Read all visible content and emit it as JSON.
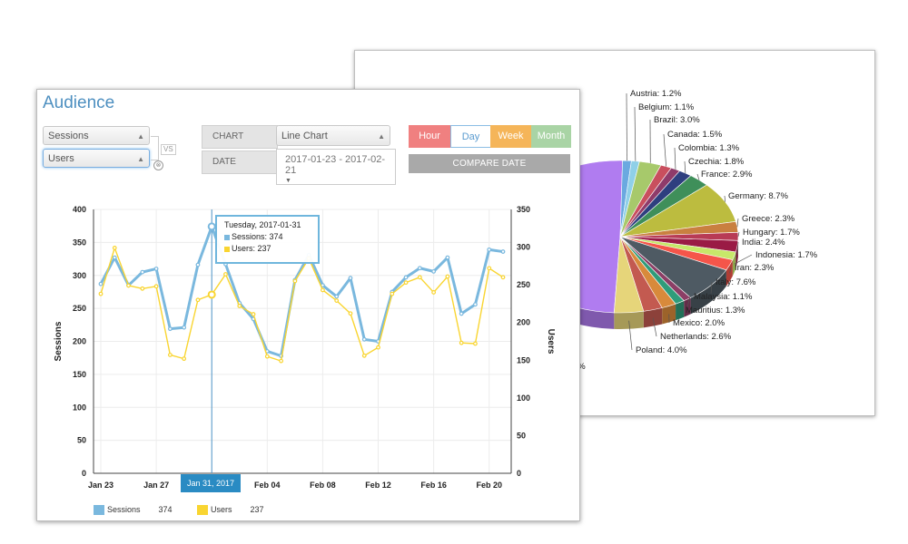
{
  "pie_panel": {
    "labels": [
      {
        "name": "Austria",
        "pct": "Austria: 1.2%"
      },
      {
        "name": "Belgium",
        "pct": "Belgium: 1.1%"
      },
      {
        "name": "Brazil",
        "pct": "Brazil: 3.0%"
      },
      {
        "name": "Canada",
        "pct": "Canada: 1.5%"
      },
      {
        "name": "Colombia",
        "pct": "Colombia: 1.3%"
      },
      {
        "name": "Czechia",
        "pct": "Czechia: 1.8%"
      },
      {
        "name": "France",
        "pct": "France: 2.9%"
      },
      {
        "name": "Germany",
        "pct": "Germany: 8.7%"
      },
      {
        "name": "Greece",
        "pct": "Greece: 2.3%"
      },
      {
        "name": "Hungary",
        "pct": "Hungary: 1.7%"
      },
      {
        "name": "India",
        "pct": "India: 2.4%"
      },
      {
        "name": "Indonesia",
        "pct": "Indonesia: 1.7%"
      },
      {
        "name": "Iran",
        "pct": "Iran: 2.3%"
      },
      {
        "name": "Italy",
        "pct": "Italy: 7.6%"
      },
      {
        "name": "Malaysia",
        "pct": "Malaysia: 1.1%"
      },
      {
        "name": "Mauritius",
        "pct": "Mauritius: 1.3%"
      },
      {
        "name": "Mexico",
        "pct": "Mexico: 2.0%"
      },
      {
        "name": "Netherlands",
        "pct": "Netherlands: 2.6%"
      },
      {
        "name": "Poland",
        "pct": "Poland: 4.0%"
      }
    ],
    "partial_label": "5%"
  },
  "audience": {
    "title": "Audience",
    "metric1": "Sessions",
    "metric2": "Users",
    "vs_label": "VS",
    "clear_glyph": "⊗",
    "chart_label": "CHART",
    "chart_type": "Line Chart",
    "date_label": "DATE",
    "date_range": "2017-01-23 - 2017-02-21",
    "granularity": [
      {
        "label": "Hour",
        "color": "#f08080",
        "active": false
      },
      {
        "label": "Day",
        "color": "#ffffff",
        "active": true
      },
      {
        "label": "Week",
        "color": "#f5b559",
        "active": false
      },
      {
        "label": "Month",
        "color": "#a9d4a5",
        "active": false
      }
    ],
    "compare_label": "COMPARE DATE",
    "tooltip": {
      "date": "Tuesday, 2017-01-31",
      "sessions": "Sessions: 374",
      "users": "Users: 237"
    },
    "date_flag": "Jan 31, 2017",
    "legend": [
      {
        "name": "Sessions",
        "value": "374",
        "color": "#7ab8de"
      },
      {
        "name": "Users",
        "value": "237",
        "color": "#f9d531"
      }
    ]
  },
  "chart_data": [
    {
      "type": "line",
      "x": [
        "2017-01-23",
        "2017-01-24",
        "2017-01-25",
        "2017-01-26",
        "2017-01-27",
        "2017-01-28",
        "2017-01-29",
        "2017-01-30",
        "2017-01-31",
        "2017-02-01",
        "2017-02-02",
        "2017-02-03",
        "2017-02-04",
        "2017-02-05",
        "2017-02-06",
        "2017-02-07",
        "2017-02-08",
        "2017-02-09",
        "2017-02-10",
        "2017-02-11",
        "2017-02-12",
        "2017-02-13",
        "2017-02-14",
        "2017-02-15",
        "2017-02-16",
        "2017-02-17",
        "2017-02-18",
        "2017-02-19",
        "2017-02-20",
        "2017-02-21"
      ],
      "x_tick_labels": [
        "Jan 23",
        "Jan 27",
        "Feb 04",
        "Feb 08",
        "Feb 12",
        "Feb 16",
        "Feb 20"
      ],
      "x_tick_index": [
        0,
        4,
        12,
        16,
        20,
        24,
        28
      ],
      "series": [
        {
          "name": "Sessions",
          "axis": "left",
          "color": "#7ab8de",
          "values": [
            287,
            327,
            285,
            305,
            310,
            219,
            221,
            316,
            374,
            317,
            258,
            234,
            185,
            178,
            293,
            331,
            285,
            268,
            296,
            203,
            200,
            275,
            297,
            311,
            306,
            327,
            242,
            256,
            339,
            336
          ]
        },
        {
          "name": "Users",
          "axis": "right",
          "color": "#f9d531",
          "values": [
            238,
            299,
            249,
            245,
            248,
            157,
            152,
            230,
            237,
            264,
            222,
            211,
            155,
            149,
            255,
            285,
            243,
            229,
            212,
            156,
            167,
            238,
            253,
            260,
            240,
            261,
            173,
            172,
            272,
            260
          ]
        }
      ],
      "ylabel": "Sessions",
      "y2label": "Users",
      "ylim": [
        0,
        400
      ],
      "y2lim": [
        0,
        350
      ],
      "yticks": [
        0,
        50,
        100,
        150,
        200,
        250,
        300,
        350,
        400
      ],
      "y2ticks": [
        0,
        50,
        100,
        150,
        200,
        250,
        300,
        350
      ],
      "highlight_index": 8,
      "grid": true
    },
    {
      "type": "pie",
      "style": "3d",
      "categories": [
        "Austria",
        "Belgium",
        "Brazil",
        "Canada",
        "Colombia",
        "Czechia",
        "France",
        "Germany",
        "Greece",
        "Hungary",
        "India",
        "Indonesia",
        "Iran",
        "Italy",
        "Malaysia",
        "Mauritius",
        "Mexico",
        "Netherlands",
        "Poland"
      ],
      "values": [
        1.2,
        1.1,
        3.0,
        1.5,
        1.3,
        1.8,
        2.9,
        8.7,
        2.3,
        1.7,
        2.4,
        1.7,
        2.3,
        7.6,
        1.1,
        1.3,
        2.0,
        2.6,
        4.0
      ],
      "colors": [
        "#6aa9e0",
        "#8fd0e8",
        "#a7c96b",
        "#c94f5e",
        "#8f3b6a",
        "#2e3f7f",
        "#3f8f5a",
        "#bcbc3f",
        "#c98040",
        "#b83b55",
        "#9a1b45",
        "#c7e86a",
        "#f5554a",
        "#4e5a63",
        "#8c3f66",
        "#2f9c7a",
        "#d88a3b",
        "#c35a50",
        "#e6d57a"
      ],
      "unit": "%"
    }
  ]
}
